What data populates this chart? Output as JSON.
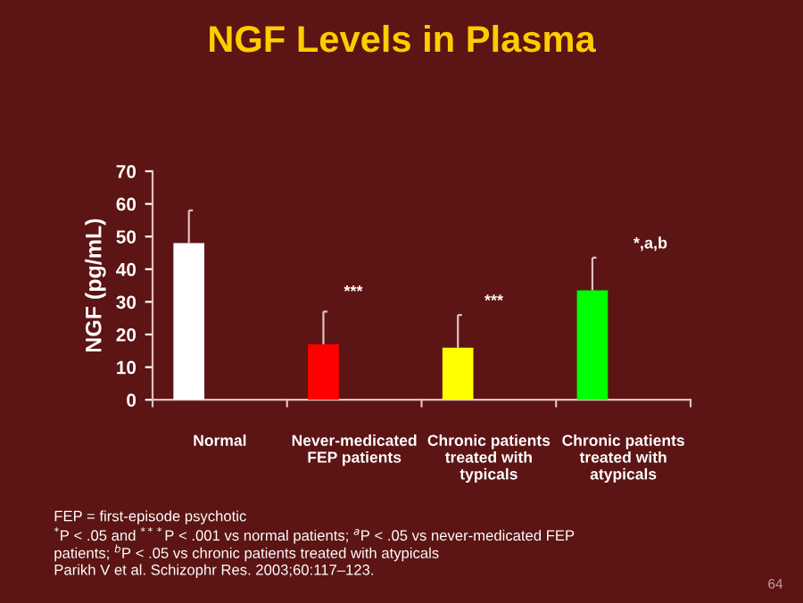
{
  "chart_data": {
    "type": "bar",
    "title": "NGF Levels in Plasma",
    "ylabel": "NGF (pg/mL)",
    "categories": [
      "Normal",
      "Never-medicated\nFEP patients",
      "Chronic patients\ntreated with\ntypicals",
      "Chronic patients\ntreated with\natypicals"
    ],
    "values": [
      48,
      17,
      16,
      33.5
    ],
    "colors": [
      "#ffffff",
      "#ff0000",
      "#ffff00",
      "#00ff00"
    ],
    "errors": [
      [
        48,
        58
      ],
      [
        17,
        27
      ],
      [
        16,
        26
      ],
      [
        33.5,
        43.5
      ]
    ],
    "ylim": [
      0,
      70
    ],
    "yticks": [
      0,
      10,
      20,
      30,
      40,
      50,
      60,
      70
    ],
    "grid": false,
    "legend": false,
    "annotations": [
      "***",
      "***",
      "*,a,b",
      "FEP = first-episode psychotic",
      "$^{*}$P < .05 and $^{***}$P < .001 vs normal patients; $^{a}$P < .05 vs never-medicated FEP",
      "patients; $^{b}$P < .05 vs chronic patients treated with atypicals",
      "Parikh V et al. Schizophr Res. 2003;60:117–123.",
      "64"
    ]
  }
}
